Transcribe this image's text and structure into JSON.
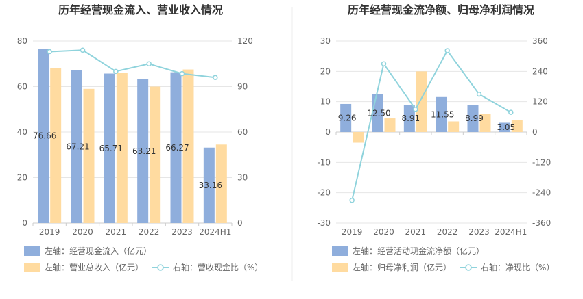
{
  "chart_data": [
    {
      "type": "bar",
      "title": "历年经营现金流入、营业收入情况",
      "categories": [
        "2019",
        "2020",
        "2021",
        "2022",
        "2023",
        "2024H1"
      ],
      "y_left": {
        "ylim": [
          0,
          80
        ],
        "ticks": [
          "0",
          "20",
          "40",
          "60",
          "80"
        ]
      },
      "y_right": {
        "ylim": [
          0,
          120
        ],
        "ticks": [
          "0",
          "30",
          "60",
          "90",
          "120"
        ]
      },
      "series": [
        {
          "name": "左轴：经营现金流入（亿元）",
          "kind": "bar",
          "axis": "left",
          "color": "#8FAEDC",
          "values": [
            76.66,
            67.21,
            65.71,
            63.21,
            66.27,
            33.16
          ],
          "labels": [
            "76.66",
            "67.21",
            "65.71",
            "63.21",
            "66.27",
            "33.16"
          ]
        },
        {
          "name": "左轴：营业总收入（亿元）",
          "kind": "bar",
          "axis": "left",
          "color": "#FFDBA0",
          "values": [
            68,
            59,
            66,
            60,
            67.5,
            34.5
          ]
        },
        {
          "name": "右轴：营收现金比（%）",
          "kind": "line",
          "axis": "right",
          "color": "#8FD3DC",
          "values": [
            113,
            114,
            100,
            105,
            98.5,
            96
          ]
        }
      ],
      "legend": "bottom-left",
      "grid": true
    },
    {
      "type": "bar",
      "title": "历年经营现金流净额、归母净利润情况",
      "categories": [
        "2019",
        "2020",
        "2021",
        "2022",
        "2023",
        "2024H1"
      ],
      "y_left": {
        "ylim": [
          -30,
          30
        ],
        "ticks": [
          "-30",
          "-20",
          "-10",
          "0",
          "10",
          "20",
          "30"
        ]
      },
      "y_right": {
        "ylim": [
          -360,
          360
        ],
        "ticks": [
          "-360",
          "-240",
          "-120",
          "0",
          "120",
          "240",
          "360"
        ]
      },
      "series": [
        {
          "name": "左轴：经营活动现金流净额（亿元）",
          "kind": "bar",
          "axis": "left",
          "color": "#8FAEDC",
          "values": [
            9.26,
            12.5,
            8.91,
            11.55,
            8.99,
            3.05
          ],
          "labels": [
            "9.26",
            "12.50",
            "8.91",
            "11.55",
            "8.99",
            "3.05"
          ]
        },
        {
          "name": "左轴：归母净利润（亿元）",
          "kind": "bar",
          "axis": "left",
          "color": "#FFDBA0",
          "values": [
            -3.5,
            4.5,
            20,
            3.5,
            6,
            4
          ]
        },
        {
          "name": "右轴：净现比（%）",
          "kind": "line",
          "axis": "right",
          "color": "#8FD3DC",
          "values": [
            -270,
            270,
            90,
            322,
            150,
            78
          ]
        }
      ],
      "legend": "bottom-left",
      "grid": true
    }
  ]
}
